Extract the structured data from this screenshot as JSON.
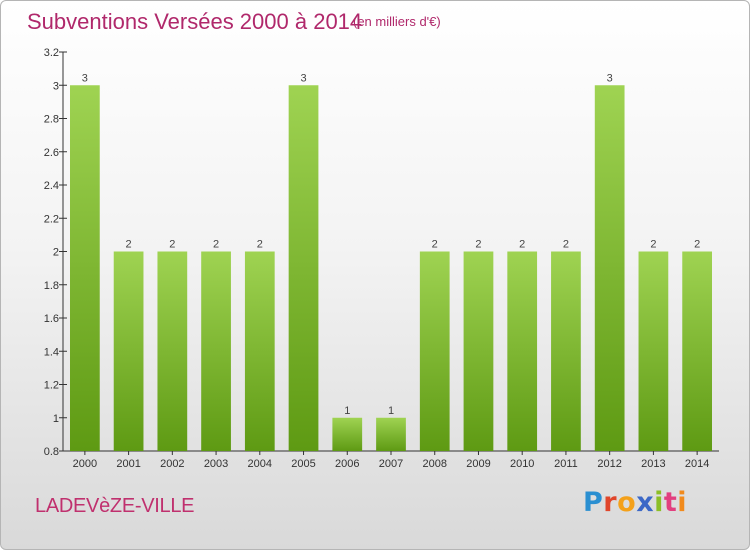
{
  "title": "Subventions Versées 2000 à 2014",
  "subtitle": "(en milliers d'€)",
  "commune": "LADEVèZE-VILLE",
  "logo": {
    "parts": [
      "P",
      "r",
      "o",
      "x",
      "i",
      "t",
      "i"
    ]
  },
  "colors": {
    "title": "#b0286b",
    "bar_light": "#9dd14f",
    "bar_dark": "#5c9a12",
    "axis": "#333333"
  },
  "chart_data": {
    "type": "bar",
    "categories": [
      "2000",
      "2001",
      "2002",
      "2003",
      "2004",
      "2005",
      "2006",
      "2007",
      "2008",
      "2009",
      "2010",
      "2011",
      "2012",
      "2013",
      "2014"
    ],
    "values": [
      3,
      2,
      2,
      2,
      2,
      3,
      1,
      1,
      2,
      2,
      2,
      2,
      3,
      2,
      2
    ],
    "value_labels": [
      "3",
      "2",
      "2",
      "2",
      "2",
      "3",
      "1",
      "1",
      "2",
      "2",
      "2",
      "2",
      "3",
      "2",
      "2"
    ],
    "ylim": [
      0.8,
      3.2
    ],
    "yticks": [
      0.8,
      1,
      1.2,
      1.4,
      1.6,
      1.8,
      2,
      2.2,
      2.4,
      2.6,
      2.8,
      3,
      3.2
    ],
    "ytick_labels": [
      "0.8",
      "1",
      "1.2",
      "1.4",
      "1.6",
      "1.8",
      "2",
      "2.2",
      "2.4",
      "2.6",
      "2.8",
      "3",
      "3.2"
    ],
    "grid": false,
    "legend": "none"
  }
}
